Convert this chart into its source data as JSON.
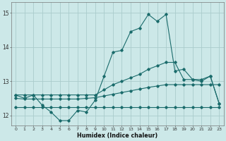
{
  "xlabel": "Humidex (Indice chaleur)",
  "bg_color": "#cce8e8",
  "line_color": "#1a6b6b",
  "grid_color": "#aacccc",
  "xlim": [
    -0.5,
    23.5
  ],
  "ylim": [
    11.7,
    15.3
  ],
  "yticks": [
    12,
    13,
    14,
    15
  ],
  "xticks": [
    0,
    1,
    2,
    3,
    4,
    5,
    6,
    7,
    8,
    9,
    10,
    11,
    12,
    13,
    14,
    15,
    16,
    17,
    18,
    19,
    20,
    21,
    22,
    23
  ],
  "y_hourly": [
    12.6,
    12.5,
    12.6,
    12.3,
    12.1,
    11.85,
    11.85,
    12.15,
    12.1,
    12.45,
    13.15,
    13.85,
    13.9,
    14.45,
    14.55,
    14.95,
    14.75,
    14.95,
    13.3,
    13.35,
    13.05,
    13.0,
    13.15,
    12.35
  ],
  "y_max": [
    12.6,
    12.6,
    12.6,
    12.6,
    12.6,
    12.6,
    12.6,
    12.6,
    12.6,
    12.6,
    12.75,
    12.9,
    13.0,
    13.1,
    13.2,
    13.35,
    13.45,
    13.55,
    13.55,
    13.05,
    13.05,
    13.05,
    13.15,
    12.35
  ],
  "y_mean": [
    12.5,
    12.48,
    12.48,
    12.48,
    12.48,
    12.48,
    12.48,
    12.48,
    12.5,
    12.52,
    12.57,
    12.62,
    12.67,
    12.72,
    12.77,
    12.82,
    12.86,
    12.9,
    12.9,
    12.9,
    12.9,
    12.9,
    12.9,
    12.9
  ],
  "y_min": [
    12.25,
    12.25,
    12.25,
    12.25,
    12.25,
    12.25,
    12.25,
    12.25,
    12.25,
    12.25,
    12.25,
    12.25,
    12.25,
    12.25,
    12.25,
    12.25,
    12.25,
    12.25,
    12.25,
    12.25,
    12.25,
    12.25,
    12.25,
    12.25
  ]
}
